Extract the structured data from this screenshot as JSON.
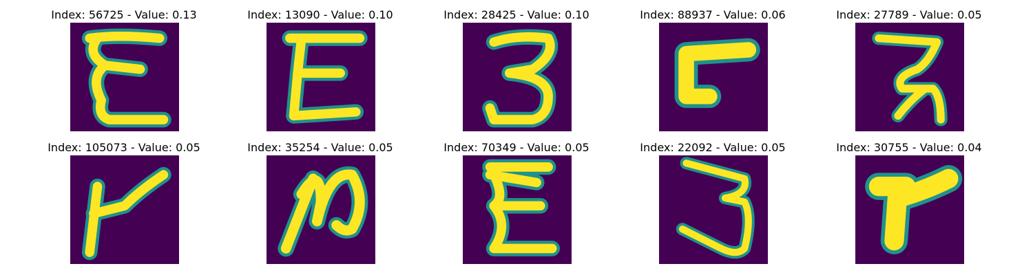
{
  "palette": {
    "background": "#440154",
    "stroke": "#fde725",
    "edge": "#21918c"
  },
  "items": [
    {
      "title": "Index: 56725 - Value: 0.13",
      "glyph": "E with wavy strokes"
    },
    {
      "title": "Index: 13090 - Value: 0.10",
      "glyph": "E"
    },
    {
      "title": "Index: 28425 - Value: 0.10",
      "glyph": "3"
    },
    {
      "title": "Index: 88937 - Value: 0.06",
      "glyph": "L-shaped hook"
    },
    {
      "title": "Index: 27789 - Value: 0.05",
      "glyph": "curved 2-like"
    },
    {
      "title": "Index: 105073 - Value: 0.05",
      "glyph": "Y-like"
    },
    {
      "title": "Index: 35254 - Value: 0.05",
      "glyph": "looped N-like"
    },
    {
      "title": "Index: 70349 - Value: 0.05",
      "glyph": "E"
    },
    {
      "title": "Index: 22092 - Value: 0.05",
      "glyph": "3"
    },
    {
      "title": "Index: 30755 - Value: 0.04",
      "glyph": "thick r-like"
    }
  ]
}
